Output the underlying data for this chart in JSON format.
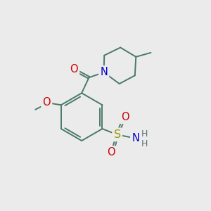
{
  "bg_color": "#ebebeb",
  "bond_color": "#4a7a6a",
  "atom_colors": {
    "O": "#cc0000",
    "N": "#0000cc",
    "S": "#999900",
    "H": "#607070",
    "C": "#4a7a6a"
  },
  "bond_width": 1.4,
  "font_size": 9.5,
  "fig_w": 3.0,
  "fig_h": 3.0
}
